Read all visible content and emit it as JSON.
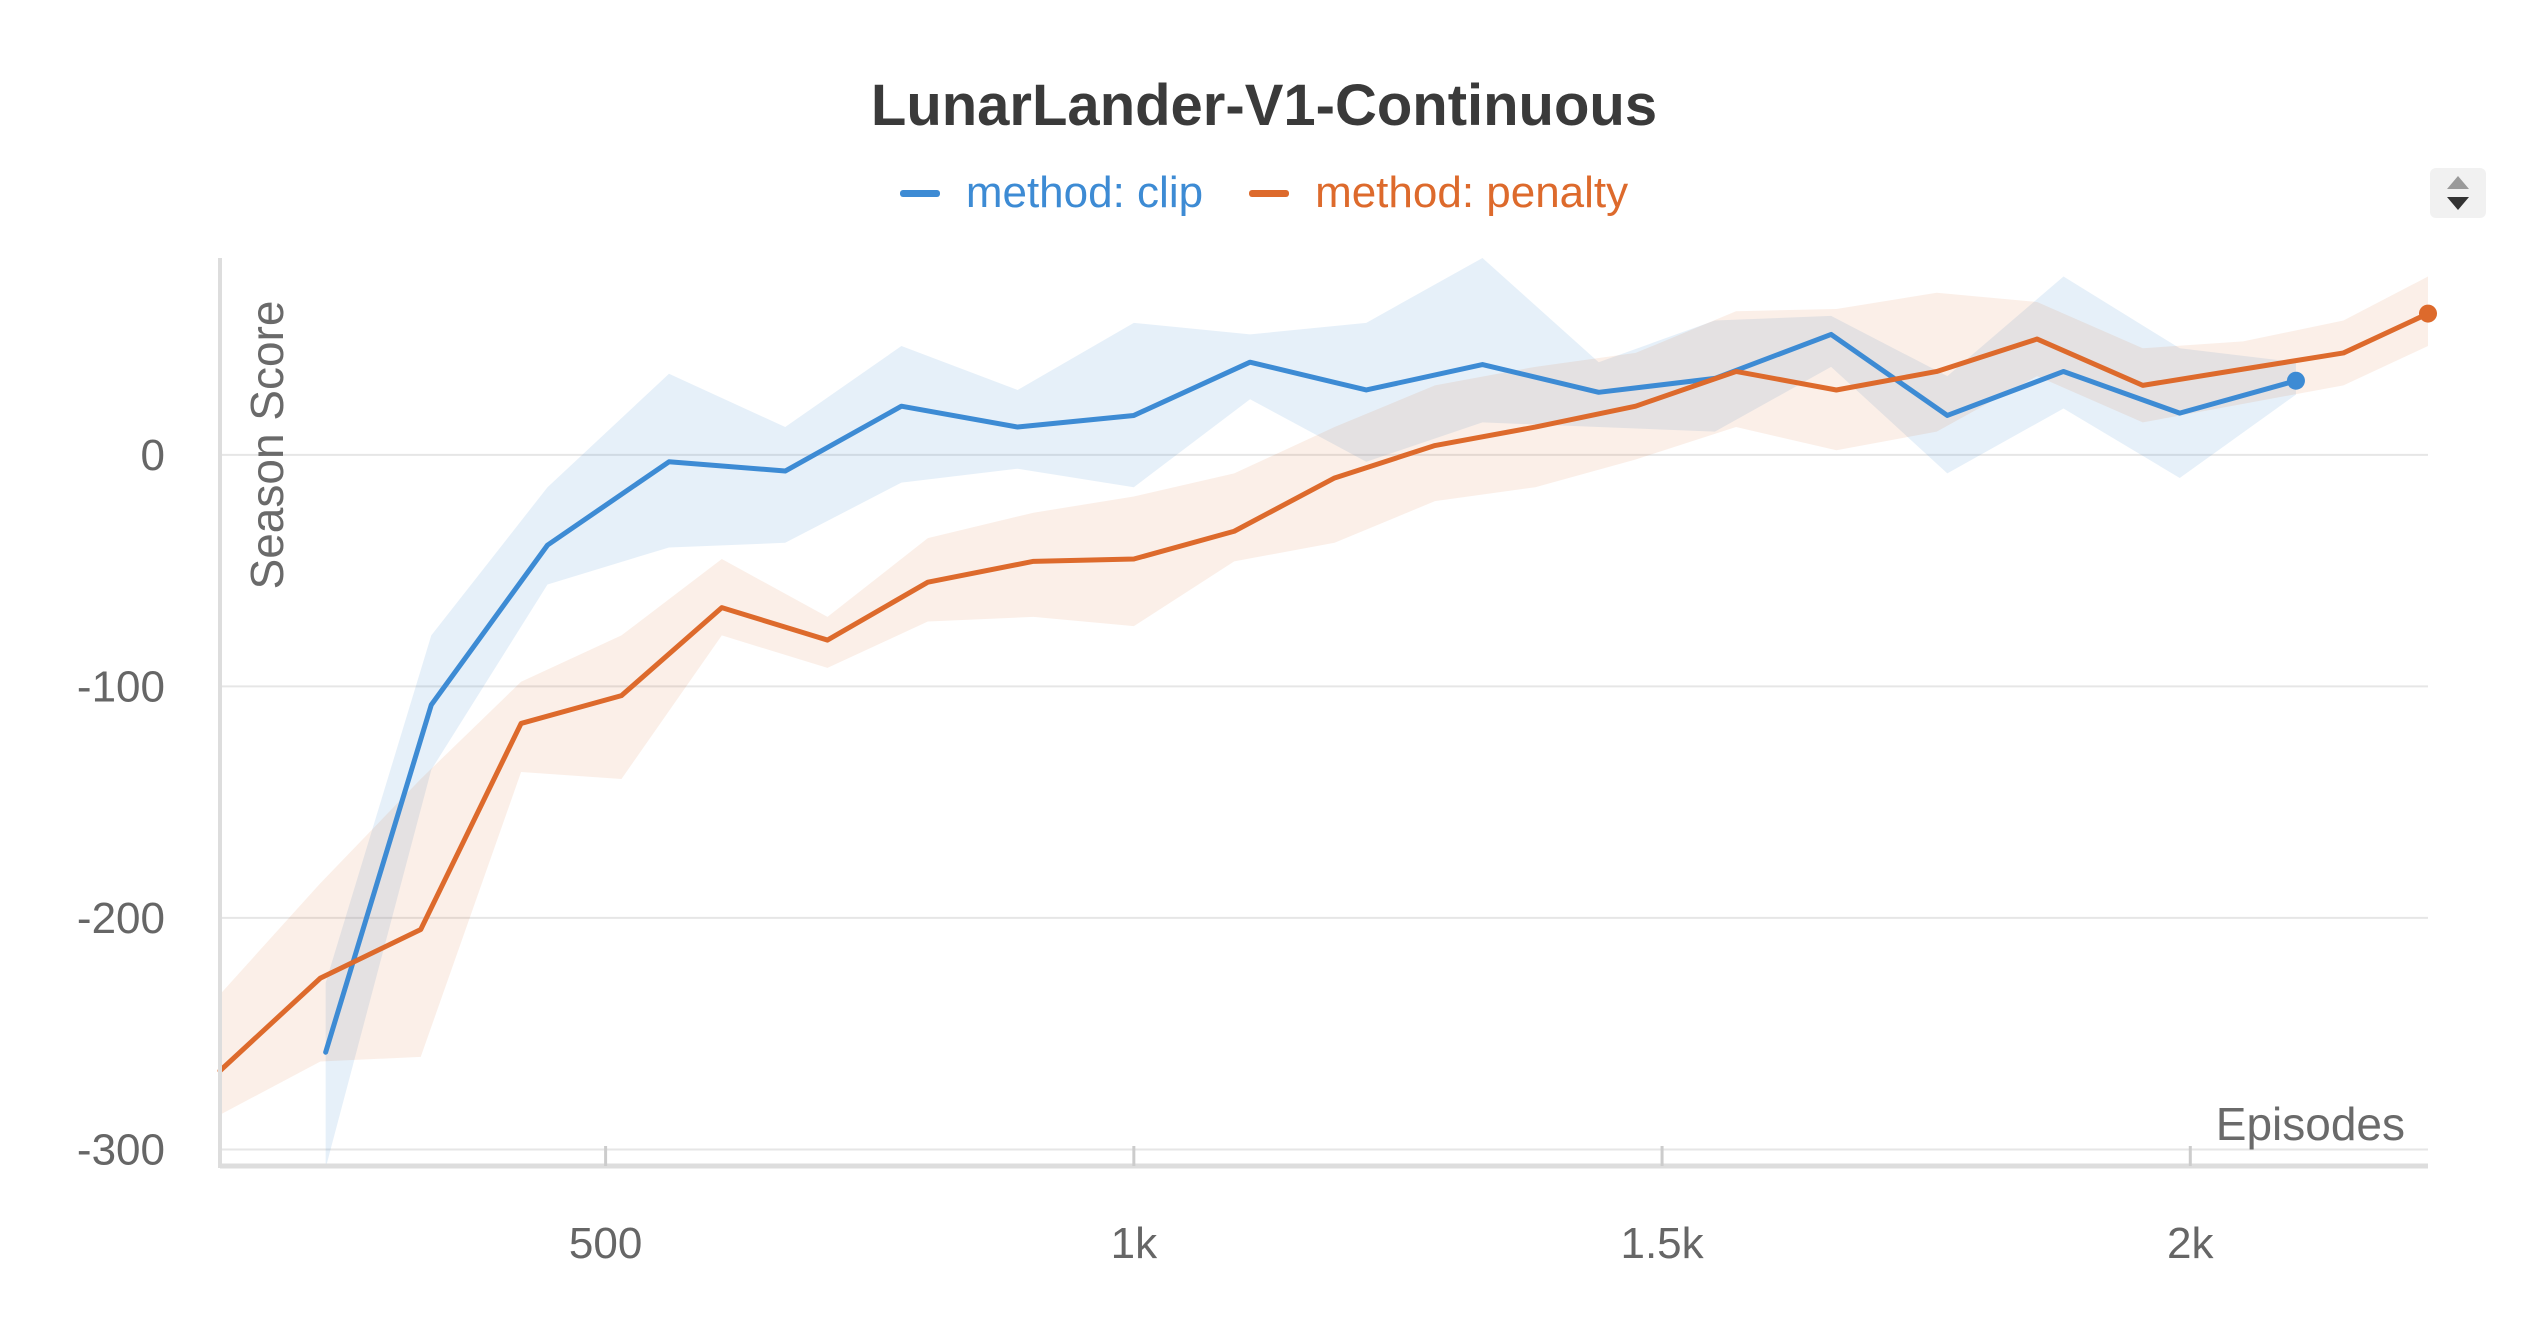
{
  "colors": {
    "clip": "#3d8bd4",
    "penalty": "#dd6a2c",
    "grid": "#e6e6e6",
    "axis": "#dddddd"
  },
  "header": {
    "sort_control_icon": "sort-up-down-icon"
  },
  "chart_data": {
    "type": "line",
    "title": "LunarLander-V1-Continuous",
    "xlabel": "Episodes",
    "ylabel": "Season Score",
    "xlim": [
      135,
      2225
    ],
    "ylim": [
      -308,
      85
    ],
    "x_ticks": [
      500,
      1000,
      1500,
      2000
    ],
    "x_tick_labels": [
      "500",
      "1k",
      "1.5k",
      "2k"
    ],
    "y_ticks": [
      0,
      -100,
      -200,
      -300
    ],
    "y_tick_labels": [
      "0",
      "-100",
      "-200",
      "-300"
    ],
    "grid": true,
    "legend": "top-center",
    "series": [
      {
        "name": "method: clip",
        "color": "#3d8bd4",
        "x": [
          235,
          335,
          445,
          560,
          670,
          780,
          890,
          1000,
          1110,
          1220,
          1330,
          1440,
          1550,
          1660,
          1770,
          1880,
          1990,
          2100
        ],
        "y": [
          -258,
          -108,
          -39,
          -3,
          -7,
          21,
          12,
          17,
          40,
          28,
          39,
          27,
          33,
          52,
          17,
          36,
          18,
          32
        ],
        "upper": [
          -228,
          -78,
          -14,
          35,
          12,
          47,
          28,
          57,
          52,
          57,
          85,
          40,
          58,
          60,
          34,
          77,
          46,
          40
        ],
        "lower": [
          -308,
          -136,
          -56,
          -40,
          -38,
          -12,
          -6,
          -14,
          24,
          -3,
          14,
          12,
          10,
          38,
          -8,
          20,
          -10,
          26
        ]
      },
      {
        "name": "method: penalty",
        "color": "#dd6a2c",
        "x": [
          135,
          230,
          325,
          420,
          515,
          610,
          710,
          805,
          905,
          1000,
          1095,
          1190,
          1285,
          1380,
          1475,
          1570,
          1665,
          1760,
          1855,
          1955,
          2050,
          2145,
          2225
        ],
        "y": [
          -266,
          -226,
          -205,
          -116,
          -104,
          -66,
          -80,
          -55,
          -46,
          -45,
          -33,
          -10,
          4,
          12,
          21,
          36,
          28,
          36,
          50,
          30,
          37,
          44,
          61
        ],
        "upper": [
          -233,
          -185,
          -140,
          -98,
          -78,
          -45,
          -70,
          -36,
          -25,
          -18,
          -8,
          12,
          30,
          38,
          44,
          62,
          63,
          70,
          66,
          46,
          49,
          58,
          77
        ],
        "lower": [
          -285,
          -262,
          -260,
          -137,
          -140,
          -78,
          -92,
          -72,
          -70,
          -74,
          -46,
          -38,
          -20,
          -14,
          -2,
          12,
          2,
          10,
          34,
          14,
          22,
          30,
          47
        ]
      }
    ]
  }
}
